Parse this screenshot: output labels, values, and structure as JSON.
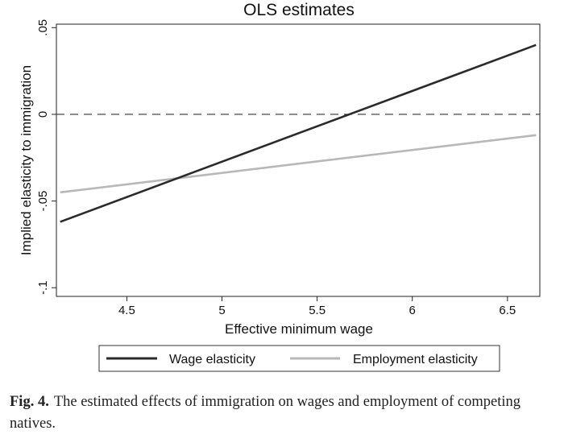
{
  "chart_data": {
    "type": "line",
    "title": "OLS estimates",
    "xlabel": "Effective minimum wage",
    "ylabel": "Implied elasticity to immigration",
    "xlim": [
      4.13,
      6.67
    ],
    "ylim": [
      -0.105,
      0.052
    ],
    "xticks": [
      4.5,
      5,
      5.5,
      6,
      6.5
    ],
    "xtick_labels": [
      "4.5",
      "5",
      "5.5",
      "6",
      "6.5"
    ],
    "yticks": [
      -0.1,
      -0.05,
      0,
      0.05
    ],
    "ytick_labels": [
      "-.1",
      "-.05",
      "0",
      ".05"
    ],
    "reference_line": {
      "y": 0,
      "style": "dashed"
    },
    "series": [
      {
        "name": "Wage elasticity",
        "color": "#2b2b2b",
        "x": [
          4.15,
          6.65
        ],
        "y": [
          -0.062,
          0.04
        ]
      },
      {
        "name": "Employment elasticity",
        "color": "#b8b8b8",
        "x": [
          4.15,
          6.65
        ],
        "y": [
          -0.045,
          -0.012
        ]
      }
    ],
    "legend_position": "bottom",
    "grid": false
  },
  "caption": {
    "label": "Fig. 4.",
    "text": "The estimated effects of immigration on wages and employment of competing natives."
  }
}
